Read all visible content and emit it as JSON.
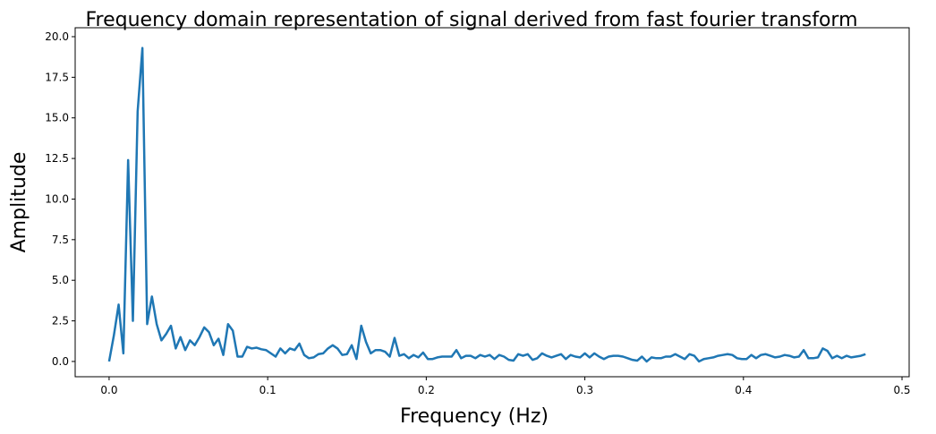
{
  "chart_data": {
    "type": "line",
    "title": "Frequency domain representation of signal derived from fast fourier transform",
    "xlabel": "Frequency (Hz)",
    "ylabel": "Amplitude",
    "color": "#1f77b4",
    "x": [
      0,
      0.003,
      0.006,
      0.009,
      0.012,
      0.015,
      0.018,
      0.021,
      0.024,
      0.027,
      0.03,
      0.033,
      0.036,
      0.039,
      0.042,
      0.045,
      0.048,
      0.051,
      0.054,
      0.057,
      0.06,
      0.063,
      0.066,
      0.069,
      0.072,
      0.075,
      0.078,
      0.081,
      0.084,
      0.087,
      0.09,
      0.093,
      0.096,
      0.099,
      0.102,
      0.105,
      0.108,
      0.111,
      0.114,
      0.117,
      0.12,
      0.123,
      0.126,
      0.129,
      0.132,
      0.135,
      0.138,
      0.141,
      0.144,
      0.147,
      0.15,
      0.153,
      0.156,
      0.159,
      0.162,
      0.165,
      0.168,
      0.171,
      0.174,
      0.177,
      0.18,
      0.183,
      0.186,
      0.189,
      0.192,
      0.195,
      0.198,
      0.201,
      0.204,
      0.207,
      0.21,
      0.213,
      0.216,
      0.219,
      0.222,
      0.225,
      0.228,
      0.231,
      0.234,
      0.237,
      0.24,
      0.243,
      0.246,
      0.249,
      0.252,
      0.255,
      0.258,
      0.261,
      0.264,
      0.267,
      0.27,
      0.273,
      0.276,
      0.279,
      0.282,
      0.285,
      0.288,
      0.291,
      0.294,
      0.297,
      0.3,
      0.303,
      0.306,
      0.309,
      0.312,
      0.315,
      0.318,
      0.321,
      0.324,
      0.327,
      0.33,
      0.333,
      0.336,
      0.339,
      0.342,
      0.345,
      0.348,
      0.351,
      0.354,
      0.357,
      0.36,
      0.363,
      0.366,
      0.369,
      0.372,
      0.375,
      0.378,
      0.381,
      0.384,
      0.387,
      0.39,
      0.393,
      0.396,
      0.399,
      0.402,
      0.405,
      0.408,
      0.411,
      0.414,
      0.417,
      0.42,
      0.423,
      0.426,
      0.429,
      0.432,
      0.435,
      0.438,
      0.441,
      0.444,
      0.447,
      0.45,
      0.453,
      0.456,
      0.459,
      0.462,
      0.465,
      0.468,
      0.471,
      0.474,
      0.477
    ],
    "values": [
      0,
      1.6,
      3.5,
      0.5,
      12.4,
      2.5,
      15.4,
      19.3,
      2.3,
      4.0,
      2.3,
      1.3,
      1.7,
      2.2,
      0.8,
      1.5,
      0.7,
      1.3,
      1.0,
      1.5,
      2.1,
      1.8,
      1.0,
      1.4,
      0.4,
      2.3,
      1.9,
      0.3,
      0.3,
      0.9,
      0.8,
      0.85,
      0.75,
      0.7,
      0.5,
      0.3,
      0.8,
      0.5,
      0.8,
      0.7,
      1.1,
      0.4,
      0.2,
      0.25,
      0.45,
      0.5,
      0.8,
      1.0,
      0.8,
      0.4,
      0.45,
      1.0,
      0.15,
      2.2,
      1.2,
      0.5,
      0.7,
      0.7,
      0.6,
      0.3,
      1.45,
      0.35,
      0.45,
      0.2,
      0.4,
      0.25,
      0.55,
      0.15,
      0.15,
      0.25,
      0.3,
      0.3,
      0.3,
      0.7,
      0.2,
      0.35,
      0.35,
      0.2,
      0.4,
      0.3,
      0.4,
      0.15,
      0.4,
      0.3,
      0.1,
      0.05,
      0.45,
      0.35,
      0.45,
      0.1,
      0.2,
      0.5,
      0.35,
      0.25,
      0.35,
      0.45,
      0.15,
      0.4,
      0.3,
      0.25,
      0.5,
      0.25,
      0.5,
      0.3,
      0.15,
      0.3,
      0.35,
      0.35,
      0.3,
      0.2,
      0.1,
      0.05,
      0.3,
      0.0,
      0.25,
      0.2,
      0.2,
      0.3,
      0.3,
      0.45,
      0.3,
      0.15,
      0.45,
      0.35,
      0.0,
      0.15,
      0.2,
      0.25,
      0.35,
      0.4,
      0.45,
      0.4,
      0.2,
      0.15,
      0.15,
      0.4,
      0.2,
      0.4,
      0.45,
      0.35,
      0.25,
      0.3,
      0.4,
      0.35,
      0.25,
      0.3,
      0.7,
      0.2,
      0.2,
      0.25,
      0.8,
      0.65,
      0.2,
      0.35,
      0.2,
      0.35,
      0.25,
      0.3,
      0.35,
      0.45
    ],
    "xlim": [
      -0.0214,
      0.5045
    ],
    "xticks": [
      {
        "value": 0,
        "label": "0.0"
      },
      0.1,
      0.2,
      0.3,
      0.4,
      0.5
    ],
    "ylim": [
      -0.94,
      20.55
    ],
    "yticks": [
      {
        "value": 0,
        "label": "0.0"
      },
      2.5,
      {
        "value": 5,
        "label": "5.0"
      },
      7.5,
      {
        "value": 10,
        "label": "10.0"
      },
      12.5,
      {
        "value": 15,
        "label": "15.0"
      },
      17.5,
      {
        "value": 20,
        "label": "20.0"
      }
    ]
  }
}
